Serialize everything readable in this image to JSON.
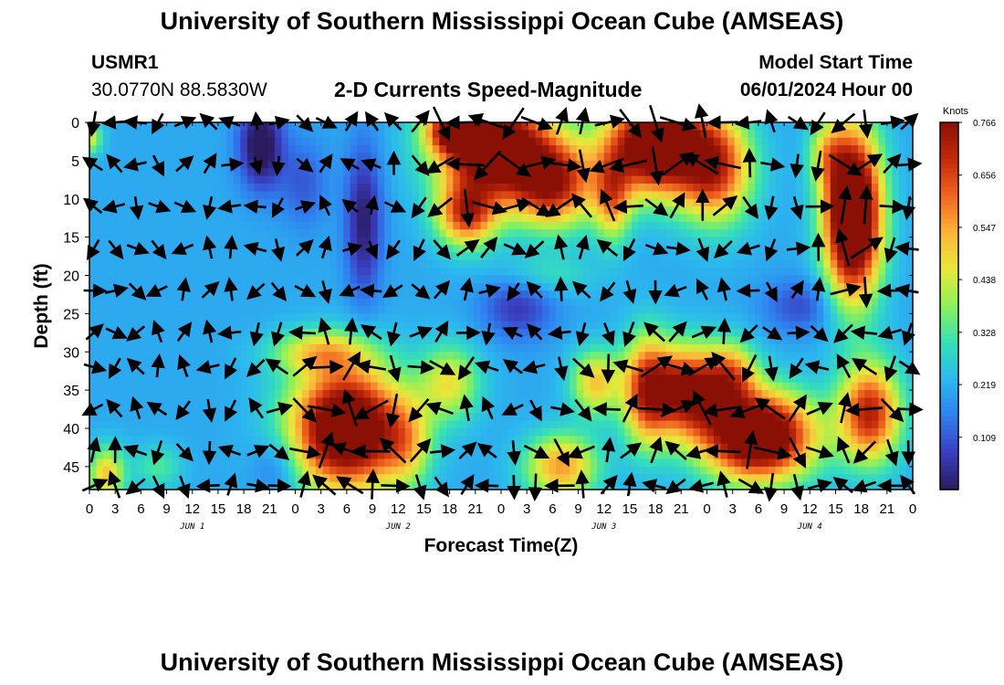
{
  "header": {
    "title": "University of Southern Mississippi Ocean Cube (AMSEAS)",
    "station": "USMR1",
    "coords": "30.0770N  88.5830W",
    "subtitle": "2-D Currents Speed-Magnitude",
    "model_start_label": "Model Start Time",
    "model_start_value": "06/01/2024 Hour 00"
  },
  "footer": {
    "title": "University of Southern Mississippi Ocean Cube (AMSEAS)"
  },
  "chart_data": {
    "type": "heatmap",
    "title": "2-D Currents Speed-Magnitude",
    "xlabel": "Forecast Time(Z)",
    "ylabel": "Depth (ft)",
    "x_tick_labels": [
      "0",
      "3",
      "6",
      "9",
      "12",
      "15",
      "18",
      "21",
      "0",
      "3",
      "6",
      "9",
      "12",
      "15",
      "18",
      "21",
      "0",
      "3",
      "6",
      "9",
      "12",
      "15",
      "18",
      "21",
      "0",
      "3",
      "6",
      "9",
      "12",
      "15",
      "18",
      "21",
      "0"
    ],
    "x_range_hours": [
      0,
      96
    ],
    "day_labels": [
      {
        "hour": 12,
        "label": "JUN 1"
      },
      {
        "hour": 36,
        "label": "JUN 2"
      },
      {
        "hour": 60,
        "label": "JUN 3"
      },
      {
        "hour": 84,
        "label": "JUN 4"
      }
    ],
    "y_ticks": [
      0,
      5,
      10,
      15,
      20,
      25,
      30,
      35,
      40,
      45
    ],
    "y_range_ft": [
      0,
      48
    ],
    "colorbar": {
      "label": "Knots",
      "ticks": [
        0.766,
        0.656,
        0.547,
        0.438,
        0.328,
        0.219,
        0.109
      ],
      "tick_labels": [
        "0.766",
        "0.656",
        "0.547",
        "0.438",
        "0.328",
        "0.219",
        "0.109"
      ],
      "range": [
        0.0,
        0.766
      ],
      "colors": [
        "#2b1a5e",
        "#3a3ec0",
        "#2f7ff0",
        "#2cb8ee",
        "#35e0b8",
        "#8cf05a",
        "#e8e83a",
        "#fbb53a",
        "#f06420",
        "#c42a0a",
        "#8a1005"
      ]
    },
    "speed_features": [
      {
        "t": 47,
        "d": 3,
        "st": 4.5,
        "sd": 4.5,
        "v": 0.72
      },
      {
        "t": 54,
        "d": 8,
        "st": 3.5,
        "sd": 4.0,
        "v": 0.5
      },
      {
        "t": 44,
        "d": 12,
        "st": 2.5,
        "sd": 3.0,
        "v": 0.45
      },
      {
        "t": 42,
        "d": 1,
        "st": 2.0,
        "sd": 2.0,
        "v": 0.35
      },
      {
        "t": 66,
        "d": 3,
        "st": 4.0,
        "sd": 4.5,
        "v": 0.72
      },
      {
        "t": 73,
        "d": 6,
        "st": 3.0,
        "sd": 5.0,
        "v": 0.45
      },
      {
        "t": 61,
        "d": 10,
        "st": 1.5,
        "sd": 4.0,
        "v": 0.3
      },
      {
        "t": 89,
        "d": 12,
        "st": 2.3,
        "sd": 7.5,
        "v": 0.85
      },
      {
        "t": 86,
        "d": 4,
        "st": 1.5,
        "sd": 3.0,
        "v": 0.2
      },
      {
        "t": 30,
        "d": 40,
        "st": 4.5,
        "sd": 5.5,
        "v": 0.75
      },
      {
        "t": 27,
        "d": 30,
        "st": 4.0,
        "sd": 2.0,
        "v": 0.25
      },
      {
        "t": 37,
        "d": 42,
        "st": 2.0,
        "sd": 4.0,
        "v": 0.2
      },
      {
        "t": 65,
        "d": 35,
        "st": 2.0,
        "sd": 5.0,
        "v": 0.45
      },
      {
        "t": 70,
        "d": 35,
        "st": 3.0,
        "sd": 4.0,
        "v": 0.55
      },
      {
        "t": 78,
        "d": 41,
        "st": 4.5,
        "sd": 4.0,
        "v": 0.75
      },
      {
        "t": 75,
        "d": 33,
        "st": 2.0,
        "sd": 3.0,
        "v": 0.3
      },
      {
        "t": 91,
        "d": 38,
        "st": 2.5,
        "sd": 4.5,
        "v": 0.5
      },
      {
        "t": 55,
        "d": 45,
        "st": 3.0,
        "sd": 3.0,
        "v": 0.35
      },
      {
        "t": 59,
        "d": 34,
        "st": 2.0,
        "sd": 3.0,
        "v": 0.3
      },
      {
        "t": 42,
        "d": 34,
        "st": 2.5,
        "sd": 3.5,
        "v": 0.25
      },
      {
        "t": 2,
        "d": 46,
        "st": 1.5,
        "sd": 2.5,
        "v": 0.3
      },
      {
        "t": 8,
        "d": 45,
        "st": 2.0,
        "sd": 2.0,
        "v": 0.12
      },
      {
        "t": 53,
        "d": 20,
        "st": 4.0,
        "sd": 2.0,
        "v": 0.1
      },
      {
        "t": 50,
        "d": 24,
        "st": 3.0,
        "sd": 3.0,
        "v": -0.15
      },
      {
        "t": 20,
        "d": 3,
        "st": 1.8,
        "sd": 4.0,
        "v": -0.25
      },
      {
        "t": 32,
        "d": 13,
        "st": 1.5,
        "sd": 7.0,
        "v": -0.2
      },
      {
        "t": 25,
        "d": 8,
        "st": 2.0,
        "sd": 4.0,
        "v": -0.1
      },
      {
        "t": 83,
        "d": 24,
        "st": 3.0,
        "sd": 2.5,
        "v": -0.12
      },
      {
        "t": 22,
        "d": 45,
        "st": 2.0,
        "sd": 3.0,
        "v": -0.1
      },
      {
        "t": 0,
        "d": 2,
        "st": 1.0,
        "sd": 1.5,
        "v": 0.25
      }
    ],
    "vector_rows_ft": [
      0,
      5.5,
      11,
      16.5,
      22,
      27.5,
      32,
      37.5,
      43,
      47.5
    ],
    "vector_columns_hours": [
      0.5,
      3,
      5.5,
      8,
      11,
      14,
      16.5,
      19.5,
      22,
      25,
      27.5,
      30.5,
      33,
      35.5,
      38.5,
      41,
      44,
      46.5,
      49.5,
      52,
      55,
      57.5,
      60.5,
      63,
      66,
      68.5,
      71.5,
      74,
      77,
      79.5,
      82.5,
      85,
      88,
      90.5,
      93.5,
      95.5
    ]
  }
}
